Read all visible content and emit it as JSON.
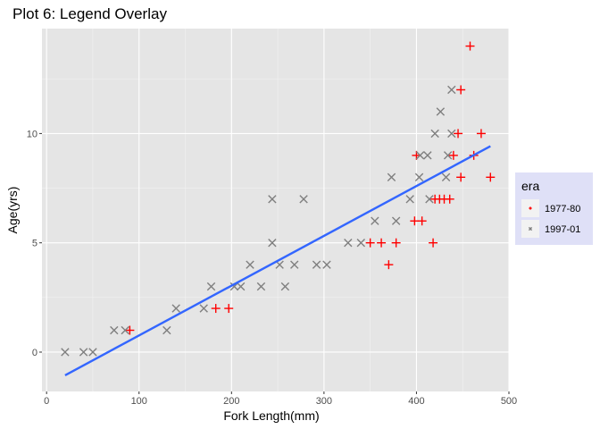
{
  "chart_data": {
    "type": "scatter",
    "title": "Plot 6: Legend Overlay",
    "xlabel": "Fork Length(mm)",
    "ylabel": "Age(yrs)",
    "xlim": [
      -5,
      500
    ],
    "ylim": [
      -1.8,
      14.8
    ],
    "x_ticks": [
      0,
      100,
      200,
      300,
      400,
      500
    ],
    "y_ticks": [
      0,
      5,
      10
    ],
    "x_minor_ticks": [
      50,
      150,
      250,
      350,
      450
    ],
    "y_minor_ticks": [
      2.5,
      7.5,
      12.5
    ],
    "grid": true,
    "background": "#e5e5e5",
    "legend": {
      "title": "era",
      "position": "right",
      "background": "#dfe0f7"
    },
    "series": [
      {
        "name": "1977-80",
        "marker": "plus",
        "color": "#ff0000",
        "points": [
          [
            90,
            1
          ],
          [
            183,
            2
          ],
          [
            197,
            2
          ],
          [
            350,
            5
          ],
          [
            362,
            5
          ],
          [
            370,
            4
          ],
          [
            378,
            5
          ],
          [
            398,
            6
          ],
          [
            400,
            9
          ],
          [
            406,
            6
          ],
          [
            418,
            5
          ],
          [
            420,
            7
          ],
          [
            425,
            7
          ],
          [
            430,
            7
          ],
          [
            436,
            7
          ],
          [
            440,
            9
          ],
          [
            445,
            10
          ],
          [
            448,
            12
          ],
          [
            448,
            8
          ],
          [
            458,
            14
          ],
          [
            462,
            9
          ],
          [
            470,
            10
          ],
          [
            480,
            8
          ]
        ]
      },
      {
        "name": "1997-01",
        "marker": "x",
        "color": "#7f7f7f",
        "points": [
          [
            20,
            0
          ],
          [
            40,
            0
          ],
          [
            50,
            0
          ],
          [
            73,
            1
          ],
          [
            85,
            1
          ],
          [
            130,
            1
          ],
          [
            140,
            2
          ],
          [
            170,
            2
          ],
          [
            178,
            3
          ],
          [
            203,
            3
          ],
          [
            210,
            3
          ],
          [
            220,
            4
          ],
          [
            232,
            3
          ],
          [
            244,
            5
          ],
          [
            244,
            7
          ],
          [
            252,
            4
          ],
          [
            258,
            3
          ],
          [
            268,
            4
          ],
          [
            278,
            7
          ],
          [
            292,
            4
          ],
          [
            303,
            4
          ],
          [
            326,
            5
          ],
          [
            340,
            5
          ],
          [
            355,
            6
          ],
          [
            373,
            8
          ],
          [
            378,
            6
          ],
          [
            393,
            7
          ],
          [
            403,
            8
          ],
          [
            404,
            9
          ],
          [
            412,
            9
          ],
          [
            414,
            7
          ],
          [
            420,
            10
          ],
          [
            426,
            11
          ],
          [
            432,
            8
          ],
          [
            434,
            9
          ],
          [
            438,
            10
          ],
          [
            438,
            12
          ]
        ]
      }
    ],
    "trend_line": {
      "color": "#3366ff",
      "x": [
        20,
        480
      ],
      "y": [
        -1.06,
        9.42
      ]
    }
  }
}
